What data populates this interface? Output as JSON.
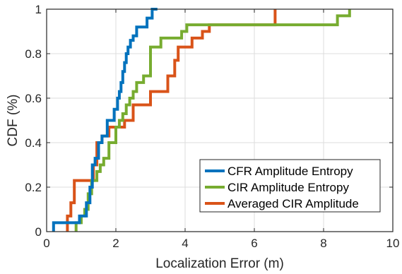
{
  "chart_data": {
    "type": "line",
    "step": true,
    "xlabel": "Localization Error (m)",
    "ylabel": "CDF (%)",
    "xlim": [
      0,
      10
    ],
    "ylim": [
      0,
      1
    ],
    "xticks": [
      0,
      2,
      4,
      6,
      8,
      10
    ],
    "yticks": [
      0,
      0.2,
      0.4,
      0.6,
      0.8,
      1
    ],
    "xtick_labels": [
      "0",
      "2",
      "4",
      "6",
      "8",
      "10"
    ],
    "ytick_labels": [
      "0",
      "0.2",
      "0.4",
      "0.6",
      "0.8",
      "1"
    ],
    "grid": true,
    "legend_position": "bottom-right",
    "series": [
      {
        "name": "CFR Amplitude Entropy",
        "color": "#0072BD",
        "x": [
          0.2,
          0.2,
          0.95,
          0.95,
          1.15,
          1.15,
          1.25,
          1.25,
          1.32,
          1.32,
          1.4,
          1.4,
          1.5,
          1.5,
          1.6,
          1.6,
          1.75,
          1.75,
          1.95,
          1.95,
          2.05,
          2.05,
          2.1,
          2.1,
          2.15,
          2.15,
          2.2,
          2.2,
          2.25,
          2.25,
          2.3,
          2.3,
          2.35,
          2.35,
          2.42,
          2.42,
          2.5,
          2.5,
          2.6,
          2.6,
          2.7,
          2.7,
          2.9,
          2.9,
          3.05,
          3.05,
          3.2
        ],
        "y": [
          0,
          0.04,
          0.04,
          0.07,
          0.07,
          0.13,
          0.13,
          0.2,
          0.2,
          0.3,
          0.3,
          0.33,
          0.33,
          0.4,
          0.4,
          0.43,
          0.43,
          0.5,
          0.5,
          0.55,
          0.55,
          0.6,
          0.6,
          0.63,
          0.63,
          0.67,
          0.67,
          0.72,
          0.72,
          0.76,
          0.76,
          0.8,
          0.8,
          0.83,
          0.83,
          0.86,
          0.86,
          0.88,
          0.88,
          0.92,
          0.92,
          0.92,
          0.92,
          0.96,
          0.96,
          1.0,
          1.0
        ]
      },
      {
        "name": "CIR Amplitude Entropy",
        "color": "#77AC30",
        "x": [
          0.85,
          0.85,
          1.0,
          1.0,
          1.1,
          1.1,
          1.2,
          1.2,
          1.3,
          1.3,
          1.45,
          1.45,
          1.55,
          1.55,
          1.65,
          1.65,
          1.8,
          1.8,
          2.0,
          2.0,
          2.1,
          2.1,
          2.2,
          2.2,
          2.3,
          2.3,
          2.4,
          2.4,
          2.5,
          2.5,
          2.6,
          2.6,
          2.8,
          2.8,
          3.0,
          3.0,
          3.3,
          3.3,
          3.9,
          3.9,
          4.05,
          4.05,
          4.5,
          4.5,
          5.2,
          5.2,
          5.8,
          5.8,
          8.4,
          8.4,
          8.75,
          8.75
        ],
        "y": [
          0,
          0.04,
          0.04,
          0.07,
          0.07,
          0.1,
          0.1,
          0.17,
          0.17,
          0.23,
          0.23,
          0.27,
          0.27,
          0.3,
          0.3,
          0.33,
          0.33,
          0.4,
          0.4,
          0.47,
          0.47,
          0.5,
          0.5,
          0.53,
          0.53,
          0.57,
          0.57,
          0.6,
          0.6,
          0.63,
          0.63,
          0.67,
          0.67,
          0.7,
          0.7,
          0.83,
          0.83,
          0.87,
          0.87,
          0.9,
          0.9,
          0.93,
          0.93,
          0.93,
          0.93,
          0.93,
          0.93,
          0.93,
          0.93,
          0.97,
          0.97,
          1.0
        ]
      },
      {
        "name": "Averaged CIR Amplitude",
        "color": "#D95319",
        "x": [
          0.6,
          0.6,
          0.7,
          0.7,
          0.8,
          0.8,
          1.35,
          1.35,
          1.45,
          1.45,
          1.6,
          1.6,
          1.8,
          1.8,
          2.25,
          2.25,
          2.5,
          2.5,
          3.0,
          3.0,
          3.5,
          3.5,
          3.7,
          3.7,
          3.8,
          3.8,
          4.2,
          4.2,
          4.5,
          4.5,
          4.7,
          4.7,
          6.6,
          6.6
        ],
        "y": [
          0,
          0.07,
          0.07,
          0.13,
          0.13,
          0.23,
          0.23,
          0.3,
          0.3,
          0.4,
          0.4,
          0.43,
          0.43,
          0.47,
          0.47,
          0.5,
          0.5,
          0.57,
          0.57,
          0.63,
          0.63,
          0.7,
          0.7,
          0.77,
          0.77,
          0.83,
          0.83,
          0.87,
          0.87,
          0.9,
          0.9,
          0.93,
          0.93,
          1.0
        ]
      }
    ]
  }
}
